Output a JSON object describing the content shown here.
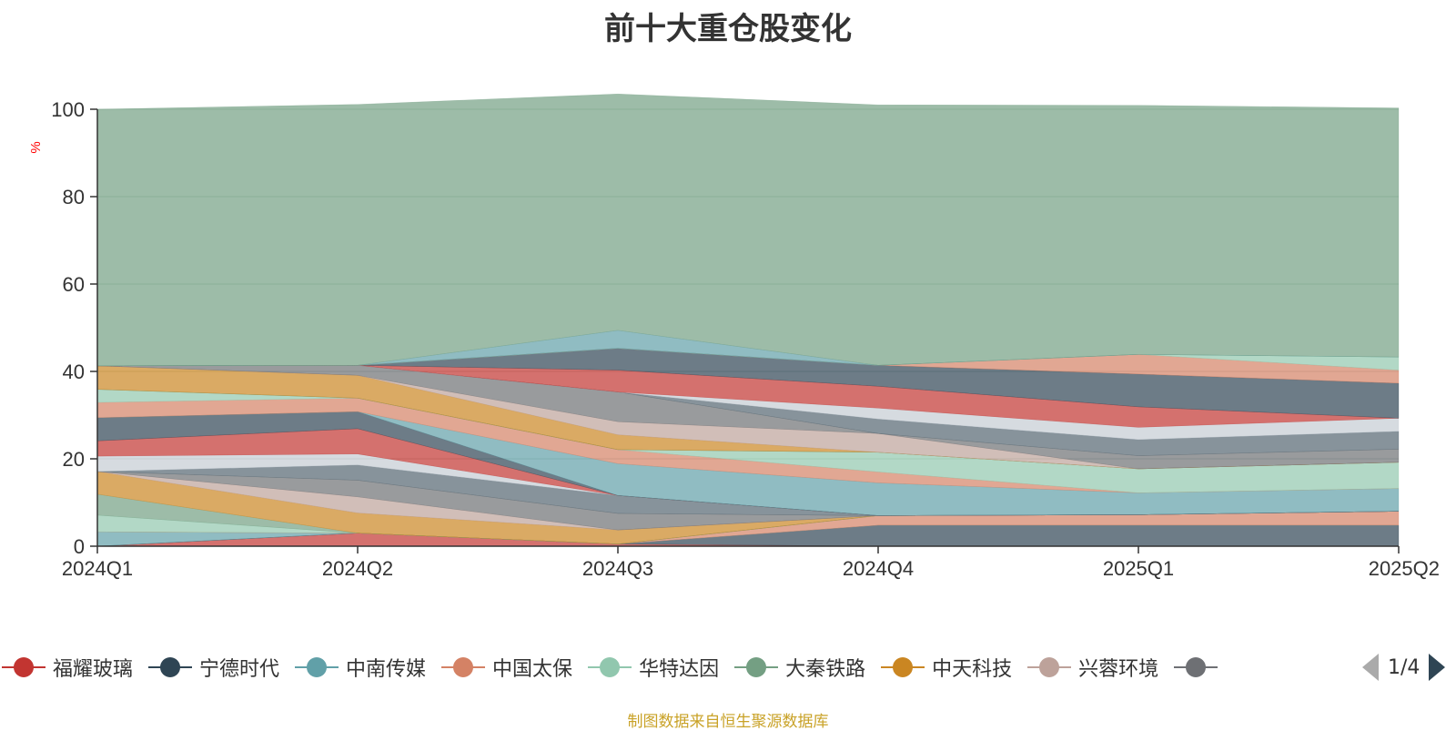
{
  "title": "前十大重仓股变化",
  "source": "制图数据来自恒生聚源数据库",
  "legend_pager": "1/4",
  "chart_data": {
    "type": "area",
    "stacked": true,
    "title": "前十大重仓股变化",
    "ylabel": "%",
    "ylim": [
      0,
      100
    ],
    "yticks": [
      0,
      20,
      40,
      60,
      80,
      100
    ],
    "grid": true,
    "categories": [
      "2024Q1",
      "2024Q2",
      "2024Q3",
      "2024Q4",
      "2025Q1",
      "2025Q2"
    ],
    "series": [
      {
        "name": "福耀玻璃",
        "color": "#c23531",
        "values": [
          0,
          3.0,
          0.5,
          0,
          0,
          0
        ]
      },
      {
        "name": "宁德时代",
        "color": "#2f4554",
        "values": [
          0,
          0,
          0,
          4.8,
          4.8,
          4.8
        ]
      },
      {
        "name": "中南传媒",
        "color": "#61a0a8",
        "values": [
          3.3,
          0,
          0,
          0,
          0,
          0
        ]
      },
      {
        "name": "中国太保",
        "color": "#d48265",
        "values": [
          0,
          0,
          0,
          2.2,
          2.4,
          3.2
        ]
      },
      {
        "name": "华特达因",
        "color": "#91c7ae",
        "values": [
          3.8,
          0,
          0,
          0,
          0,
          0
        ]
      },
      {
        "name": "大秦铁路",
        "color": "#749f83",
        "values": [
          4.8,
          0,
          0,
          0,
          0,
          0
        ]
      },
      {
        "name": "中天科技",
        "color": "#ca8622",
        "values": [
          5.2,
          4.6,
          3.2,
          0,
          0,
          0
        ]
      },
      {
        "name": "兴蓉环境",
        "color": "#bda29a",
        "values": [
          0,
          3.7,
          0,
          0,
          0,
          0
        ]
      },
      {
        "series_index": 9,
        "color": "#6e7074",
        "values": [
          0,
          3.8,
          3.8,
          0,
          0,
          0
        ]
      },
      {
        "series_index": 10,
        "color": "#546570",
        "values": [
          0,
          3.5,
          4.1,
          0,
          0,
          0
        ]
      },
      {
        "series_index": 11,
        "color": "#c4ccd3",
        "values": [
          3.5,
          2.5,
          0,
          0,
          0,
          0
        ]
      },
      {
        "series_index": 12,
        "color": "#c23531",
        "values": [
          3.5,
          5.8,
          0,
          0,
          0,
          0
        ]
      },
      {
        "series_index": 13,
        "color": "#2f4554",
        "values": [
          5.3,
          3.9,
          0,
          0,
          0,
          0
        ]
      },
      {
        "series_index": 14,
        "color": "#61a0a8",
        "values": [
          0,
          0,
          7.3,
          7.5,
          5.0,
          5.2
        ]
      },
      {
        "series_index": 15,
        "color": "#d48265",
        "values": [
          3.5,
          3.1,
          3.2,
          2.5,
          0,
          0
        ]
      },
      {
        "series_index": 16,
        "color": "#91c7ae",
        "values": [
          3.0,
          0,
          0,
          4.5,
          5.5,
          6.0
        ]
      },
      {
        "series_index": 17,
        "color": "#749f83",
        "values": [
          0,
          0,
          0,
          0,
          0,
          0
        ]
      },
      {
        "series_index": 18,
        "color": "#ca8622",
        "values": [
          5.4,
          5.2,
          3.4,
          0,
          0,
          0
        ]
      },
      {
        "series_index": 19,
        "color": "#bda29a",
        "values": [
          0,
          0,
          3.0,
          4.3,
          0,
          0
        ]
      },
      {
        "series_index": 20,
        "color": "#6e7074",
        "values": [
          0,
          2.3,
          6.8,
          0,
          3.0,
          3.0
        ]
      },
      {
        "series_index": 21,
        "color": "#546570",
        "values": [
          0,
          0,
          0,
          3.3,
          3.7,
          4.1
        ]
      },
      {
        "series_index": 22,
        "color": "#c4ccd3",
        "values": [
          0,
          0,
          0,
          2.5,
          2.8,
          3.0
        ]
      },
      {
        "series_index": 23,
        "color": "#c23531",
        "values": [
          0,
          0,
          5.0,
          5.0,
          4.7,
          0
        ]
      },
      {
        "series_index": 24,
        "color": "#2f4554",
        "values": [
          0,
          0,
          5.0,
          4.8,
          7.5,
          8.0
        ]
      },
      {
        "series_index": 25,
        "color": "#d48265",
        "values": [
          0,
          0,
          0,
          0,
          4.5,
          3.0
        ]
      },
      {
        "series_index": 26,
        "color": "#91c7ae",
        "values": [
          0,
          0,
          0,
          0,
          0,
          3.0
        ]
      },
      {
        "series_index": 27,
        "color": "#61a0a8",
        "values": [
          0,
          0,
          4.1,
          0,
          0,
          0
        ]
      },
      {
        "series_index": 28,
        "color": "#749f83",
        "values": [
          58.7,
          59.7,
          54.1,
          59.6,
          57.0,
          57.0
        ]
      }
    ]
  }
}
